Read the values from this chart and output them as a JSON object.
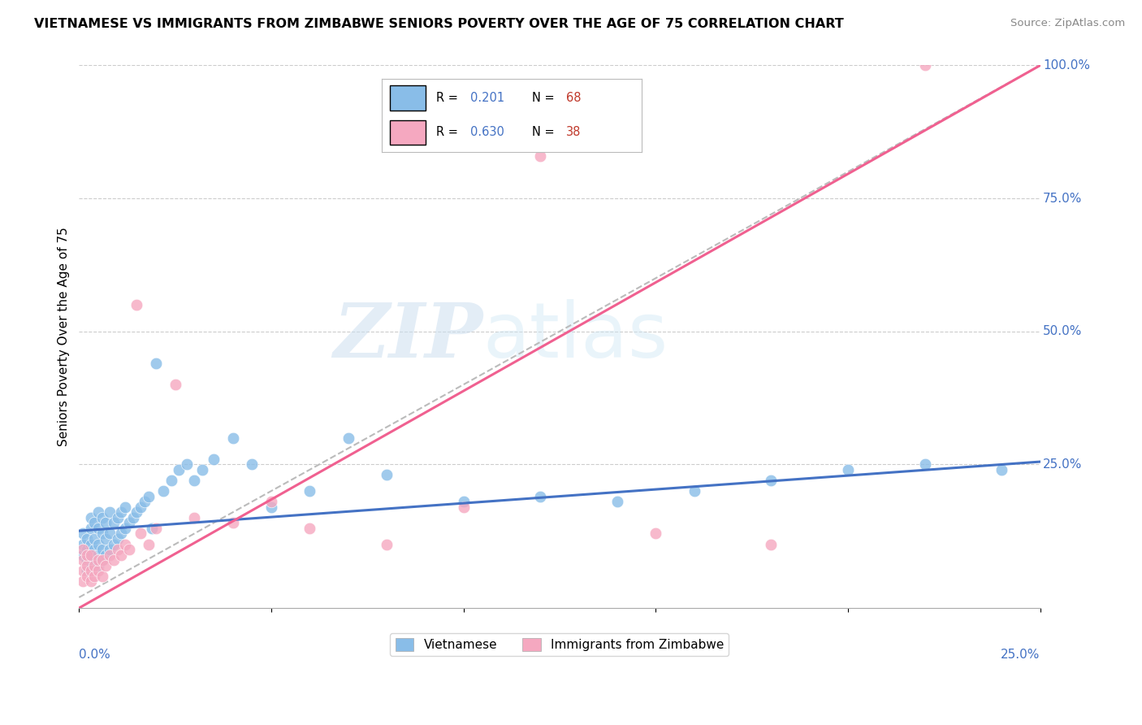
{
  "title": "VIETNAMESE VS IMMIGRANTS FROM ZIMBABWE SENIORS POVERTY OVER THE AGE OF 75 CORRELATION CHART",
  "source": "Source: ZipAtlas.com",
  "ylabel": "Seniors Poverty Over the Age of 75",
  "xlim": [
    0.0,
    0.25
  ],
  "ylim": [
    -0.02,
    1.0
  ],
  "R_vietnamese": 0.201,
  "N_vietnamese": 68,
  "R_zimbabwe": 0.63,
  "N_zimbabwe": 38,
  "color_vietnamese": "#89bde8",
  "color_zimbabwe": "#f5a8c0",
  "line_color_vietnamese": "#4472c4",
  "line_color_zimbabwe": "#f06090",
  "viet_line_x": [
    0.0,
    0.25
  ],
  "viet_line_y": [
    0.125,
    0.255
  ],
  "zimb_line_x": [
    0.0,
    0.25
  ],
  "zimb_line_y": [
    -0.02,
    1.0
  ],
  "dash_line_x": [
    0.0,
    0.25
  ],
  "dash_line_y": [
    0.0,
    1.0
  ],
  "watermark_zip": "ZIP",
  "watermark_atlas": "atlas",
  "background_color": "#ffffff",
  "viet_x": [
    0.001,
    0.001,
    0.001,
    0.002,
    0.002,
    0.002,
    0.002,
    0.003,
    0.003,
    0.003,
    0.003,
    0.003,
    0.004,
    0.004,
    0.004,
    0.004,
    0.005,
    0.005,
    0.005,
    0.005,
    0.005,
    0.006,
    0.006,
    0.006,
    0.006,
    0.007,
    0.007,
    0.007,
    0.008,
    0.008,
    0.008,
    0.009,
    0.009,
    0.01,
    0.01,
    0.011,
    0.011,
    0.012,
    0.012,
    0.013,
    0.014,
    0.015,
    0.016,
    0.017,
    0.018,
    0.019,
    0.02,
    0.022,
    0.024,
    0.026,
    0.028,
    0.03,
    0.032,
    0.035,
    0.04,
    0.045,
    0.05,
    0.06,
    0.07,
    0.08,
    0.1,
    0.12,
    0.14,
    0.16,
    0.18,
    0.2,
    0.22,
    0.24
  ],
  "viet_y": [
    0.08,
    0.1,
    0.12,
    0.05,
    0.07,
    0.09,
    0.11,
    0.06,
    0.08,
    0.1,
    0.13,
    0.15,
    0.07,
    0.09,
    0.11,
    0.14,
    0.06,
    0.08,
    0.1,
    0.13,
    0.16,
    0.07,
    0.09,
    0.12,
    0.15,
    0.08,
    0.11,
    0.14,
    0.09,
    0.12,
    0.16,
    0.1,
    0.14,
    0.11,
    0.15,
    0.12,
    0.16,
    0.13,
    0.17,
    0.14,
    0.15,
    0.16,
    0.17,
    0.18,
    0.19,
    0.13,
    0.44,
    0.2,
    0.22,
    0.24,
    0.25,
    0.22,
    0.24,
    0.26,
    0.3,
    0.25,
    0.17,
    0.2,
    0.3,
    0.23,
    0.18,
    0.19,
    0.18,
    0.2,
    0.22,
    0.24,
    0.25,
    0.24
  ],
  "zimb_x": [
    0.001,
    0.001,
    0.001,
    0.001,
    0.002,
    0.002,
    0.002,
    0.003,
    0.003,
    0.003,
    0.004,
    0.004,
    0.005,
    0.005,
    0.006,
    0.006,
    0.007,
    0.008,
    0.009,
    0.01,
    0.011,
    0.012,
    0.013,
    0.015,
    0.016,
    0.018,
    0.02,
    0.025,
    0.03,
    0.04,
    0.05,
    0.06,
    0.08,
    0.1,
    0.12,
    0.15,
    0.18,
    0.22
  ],
  "zimb_y": [
    0.03,
    0.05,
    0.07,
    0.09,
    0.04,
    0.06,
    0.08,
    0.03,
    0.05,
    0.08,
    0.04,
    0.06,
    0.05,
    0.07,
    0.04,
    0.07,
    0.06,
    0.08,
    0.07,
    0.09,
    0.08,
    0.1,
    0.09,
    0.55,
    0.12,
    0.1,
    0.13,
    0.4,
    0.15,
    0.14,
    0.18,
    0.13,
    0.1,
    0.17,
    0.83,
    0.12,
    0.1,
    1.0
  ]
}
